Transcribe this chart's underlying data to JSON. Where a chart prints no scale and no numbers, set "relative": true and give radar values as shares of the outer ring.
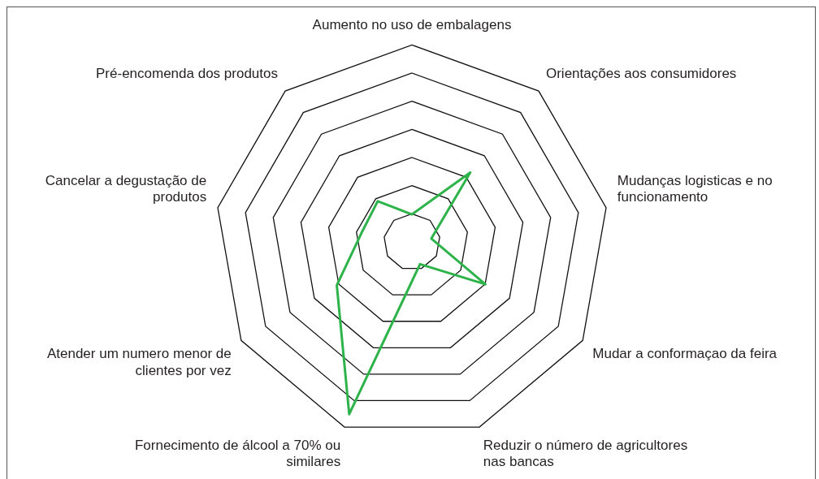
{
  "chart_data": {
    "type": "radar",
    "relative": true,
    "categories": [
      "Aumento no uso de embalagens",
      "Orientações aos consumidores",
      "Mudanças logisticas e no funcionamento",
      "Mudar a conformaçao da feira",
      "Reduzir o número de agricultores nas bancas",
      "Fornecimento de álcool a 70% ou similares",
      "Atender um numero menor de clientes por vez",
      "Cancelar a degustação de produtos",
      "Pré-encomenda dos produtos"
    ],
    "series": [
      {
        "color": "#2db34a",
        "values": [
          0.14,
          0.46,
          0.1,
          0.43,
          0.12,
          0.93,
          0.44,
          0.26,
          0.27
        ]
      }
    ],
    "legend": false,
    "marker": "none"
  }
}
